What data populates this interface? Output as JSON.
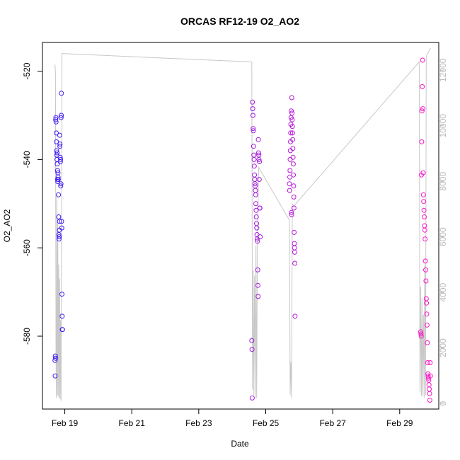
{
  "chart_data": {
    "type": "scatter",
    "title": "ORCAS RF12-19 O2_AO2",
    "xlabel": "Date",
    "ylabel": "O2_AO2",
    "x_axis": {
      "type": "date",
      "range": [
        "2016-02-18T08:00",
        "2016-03-01T04:00"
      ],
      "ticks": [
        {
          "date": "2016-02-19",
          "label": "Feb 19"
        },
        {
          "date": "2016-02-21",
          "label": "Feb 21"
        },
        {
          "date": "2016-02-23",
          "label": "Feb 23"
        },
        {
          "date": "2016-02-25",
          "label": "Feb 25"
        },
        {
          "date": "2016-02-27",
          "label": "Feb 27"
        },
        {
          "date": "2016-02-29",
          "label": "Feb 29"
        }
      ]
    },
    "y_axis_left": {
      "range": [
        -596.5,
        -513.5
      ],
      "ticks": [
        -520,
        -540,
        -560,
        -580
      ]
    },
    "y_axis_right": {
      "range": [
        -200,
        13000
      ],
      "ticks": [
        0,
        2000,
        4000,
        6000,
        8000,
        10000,
        12000
      ],
      "color": "#bbbbbb"
    },
    "colors": {
      "series_start": "#3b1cf5",
      "series_end": "#ff14c8",
      "line": "#c8c8c8"
    },
    "grid": false,
    "series": [
      {
        "type": "points",
        "axis": "left",
        "flights": [
          {
            "start": "2016-02-18T17:00",
            "end": "2016-02-18T22:20",
            "y": [
              -585.5,
              -589,
              -584.5,
              -585,
              -531,
              -530.5,
              -531.5,
              -534,
              -536,
              -538,
              -539,
              -540,
              -538.5,
              -541,
              -542.5,
              -544.5,
              -545,
              -543,
              -544,
              -544.5,
              -548,
              -553,
              -557,
              -558,
              -557.5,
              -556,
              -554,
              -534.5,
              -537,
              -536.5,
              -539.5,
              -540.5,
              -540,
              -546,
              -545.5,
              -530.5,
              -530,
              -525,
              -554,
              -555.5,
              -570.5,
              -575.5,
              -578.5,
              -578.5
            ]
          },
          {
            "start": "2016-02-24T14:00",
            "end": "2016-02-24T20:00",
            "y": [
              -581,
              -583,
              -594,
              -527,
              -528.5,
              -530,
              -533,
              -533.5,
              -537,
              -539,
              -540,
              -541.5,
              -543.5,
              -544.5,
              -545.5,
              -546,
              -547,
              -548,
              -550,
              -551.5,
              -553,
              -554.5,
              -555.5,
              -557,
              -558,
              -558.5,
              -565,
              -568.5,
              -571,
              -535.5,
              -538.5,
              -539,
              -540,
              -544.5,
              -540.5,
              -551,
              -551,
              -557.5
            ]
          },
          {
            "start": "2016-02-25T17:00",
            "end": "2016-02-25T21:00",
            "y": [
              -545.5,
              -547,
              -544,
              -542.5,
              -540,
              -538,
              -536,
              -534,
              -532,
              -530.5,
              -529,
              -552,
              -552.5,
              -526,
              -529.5,
              -531,
              -532.5,
              -534,
              -535.5,
              -537.5,
              -539.5,
              -541,
              -543.5,
              -546,
              -548.5,
              -551,
              -556.5,
              -559,
              -560,
              -561,
              -563.5,
              -575.5
            ]
          },
          {
            "start": "2016-02-29T15:00",
            "end": "2016-02-29T22:00",
            "y": [
              -579,
              -579.5,
              -580,
              -543.5,
              -536,
              -529,
              -523.5,
              -517.5,
              -528.5,
              -543,
              -548,
              -549.5,
              -551.5,
              -553,
              -555,
              -556,
              -558,
              -563,
              -565,
              -567.5,
              -571.5,
              -572.5,
              -575,
              -577.5,
              -581.5,
              -586,
              -588.5,
              -589,
              -589.5,
              -590,
              -591,
              -592,
              -593,
              -594.5,
              -586,
              -589
            ]
          }
        ]
      },
      {
        "type": "line",
        "axis": "right",
        "points": [
          [
            "2016-02-18T17:00",
            12200
          ],
          [
            "2016-02-18T17:20",
            11900
          ],
          [
            "2016-02-18T17:40",
            2000
          ],
          [
            "2016-02-18T18:00",
            200
          ],
          [
            "2016-02-18T18:20",
            7500
          ],
          [
            "2016-02-18T18:40",
            300
          ],
          [
            "2016-02-18T19:00",
            6500
          ],
          [
            "2016-02-18T19:20",
            250
          ],
          [
            "2016-02-18T19:40",
            5000
          ],
          [
            "2016-02-18T20:00",
            200
          ],
          [
            "2016-02-18T20:20",
            4500
          ],
          [
            "2016-02-18T20:40",
            150
          ],
          [
            "2016-02-18T21:00",
            3000
          ],
          [
            "2016-02-18T21:20",
            100
          ],
          [
            "2016-02-18T22:00",
            12600
          ],
          [
            "2016-02-24T14:00",
            12300
          ],
          [
            "2016-02-24T14:30",
            500
          ],
          [
            "2016-02-24T15:00",
            4800
          ],
          [
            "2016-02-24T15:30",
            300
          ],
          [
            "2016-02-24T16:00",
            4600
          ],
          [
            "2016-02-24T16:30",
            200
          ],
          [
            "2016-02-24T17:00",
            5700
          ],
          [
            "2016-02-24T17:30",
            200
          ],
          [
            "2016-02-24T18:00",
            5800
          ],
          [
            "2016-02-24T19:00",
            8500
          ],
          [
            "2016-02-25T17:00",
            6600
          ],
          [
            "2016-02-25T17:30",
            300
          ],
          [
            "2016-02-25T18:00",
            1500
          ],
          [
            "2016-02-25T18:30",
            200
          ],
          [
            "2016-02-25T19:00",
            7200
          ],
          [
            "2016-02-25T20:00",
            7100
          ],
          [
            "2016-02-29T14:00",
            12300
          ],
          [
            "2016-02-29T14:30",
            400
          ],
          [
            "2016-02-29T15:00",
            4200
          ],
          [
            "2016-02-29T15:30",
            250
          ],
          [
            "2016-02-29T16:00",
            3800
          ],
          [
            "2016-02-29T16:30",
            300
          ],
          [
            "2016-02-29T17:00",
            3200
          ],
          [
            "2016-02-29T17:30",
            200
          ],
          [
            "2016-02-29T18:00",
            5000
          ],
          [
            "2016-02-29T18:30",
            300
          ],
          [
            "2016-02-29T19:00",
            12500
          ],
          [
            "2016-02-29T22:00",
            12800
          ]
        ]
      }
    ]
  }
}
